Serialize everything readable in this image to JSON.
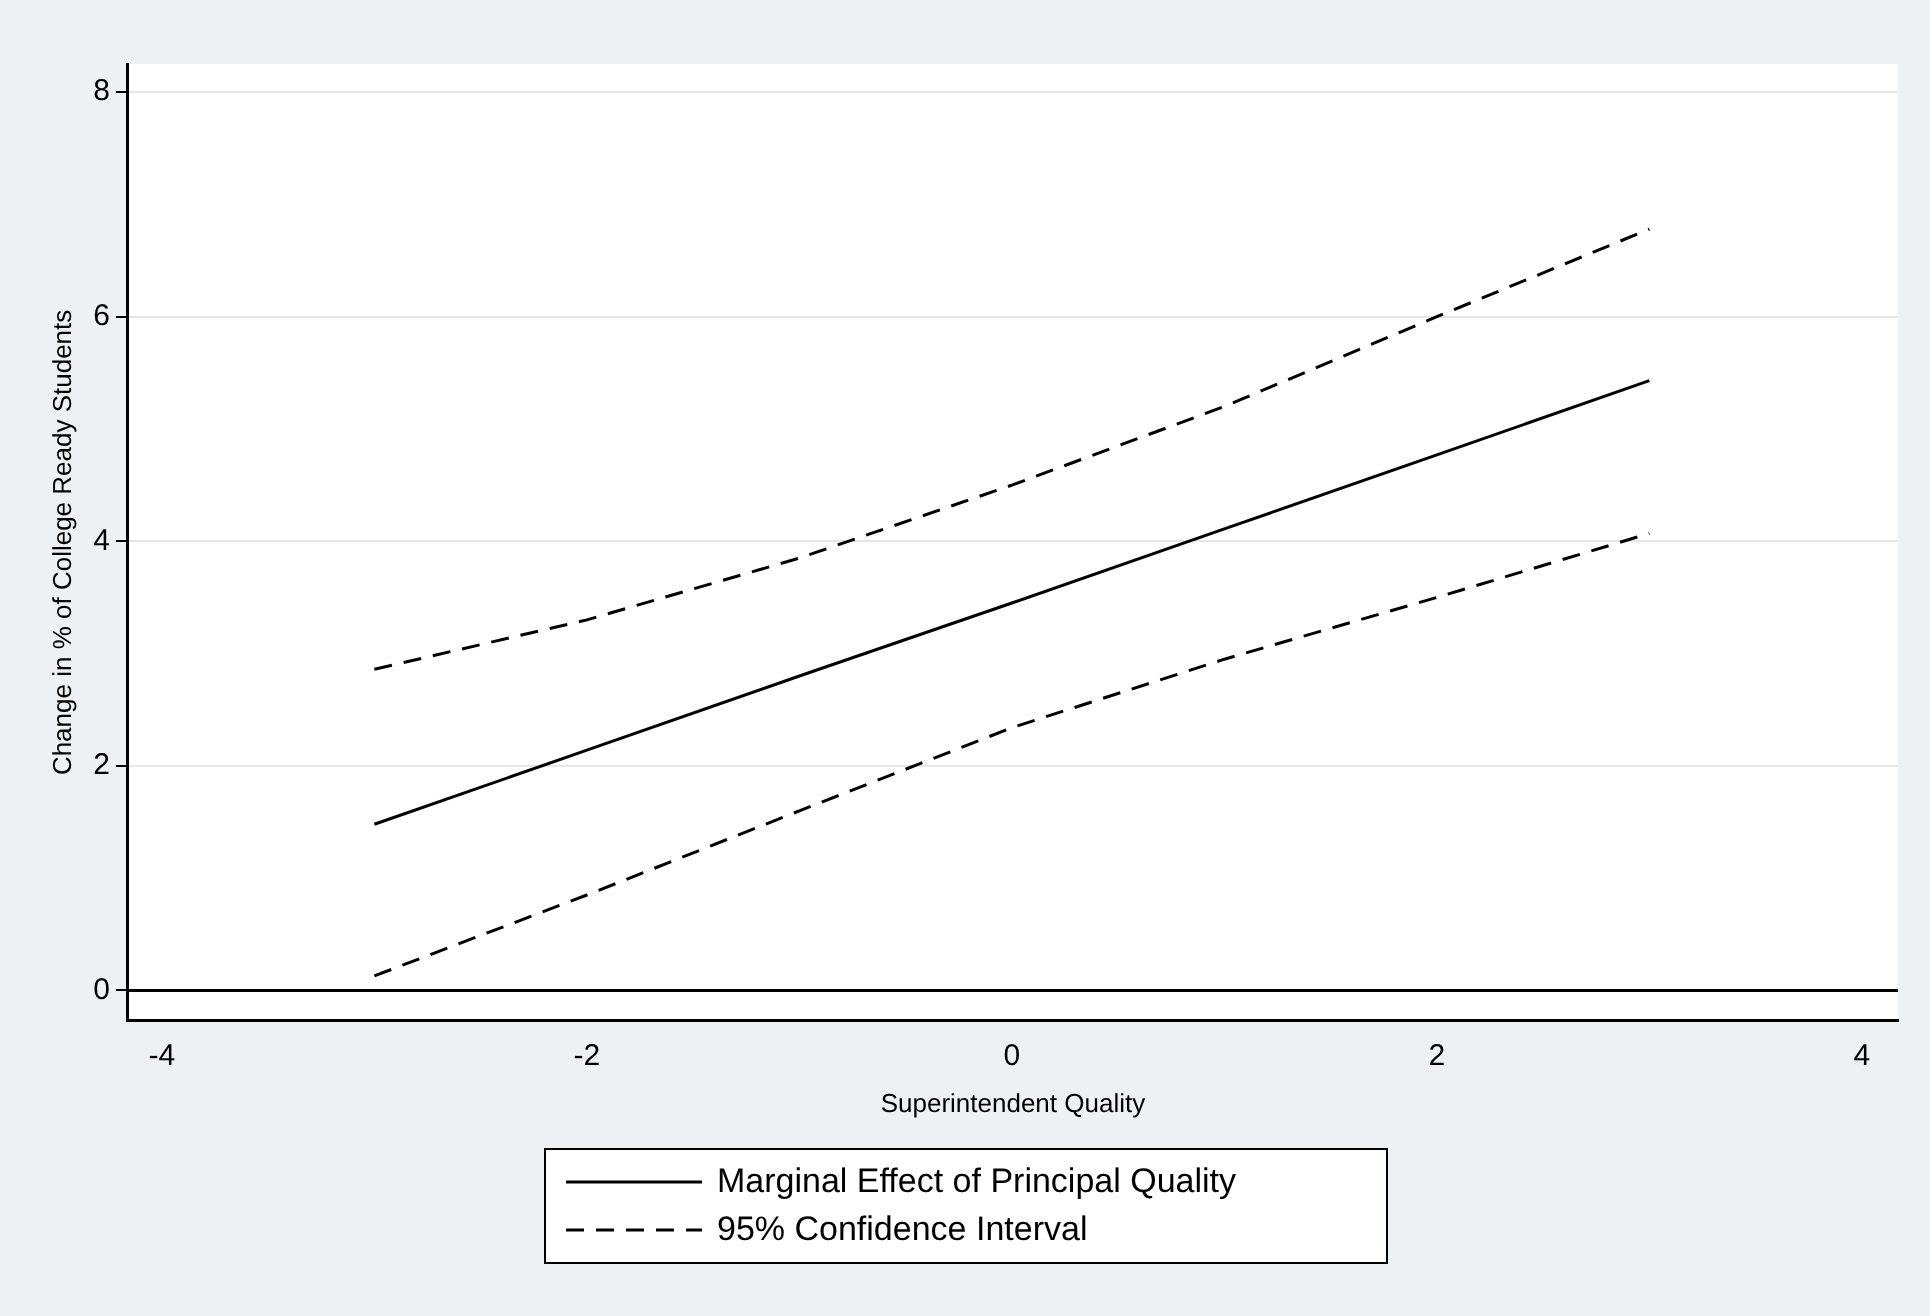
{
  "chart_data": {
    "type": "line",
    "xlabel": "Superintendent Quality",
    "ylabel": "Change in % of College Ready Students",
    "x": [
      -3,
      -2,
      -1,
      0,
      1,
      2,
      3
    ],
    "series": [
      {
        "name": "Marginal Effect of Principal Quality",
        "color": "#000000",
        "line_style": "solid",
        "values": [
          1.48,
          2.14,
          2.8,
          3.45,
          4.11,
          4.77,
          5.43
        ]
      },
      {
        "name": "95% Confidence Interval",
        "color": "#000000",
        "line_style": "dashed",
        "values": [
          2.86,
          3.3,
          3.85,
          4.5,
          5.2,
          6.0,
          6.78
        ]
      },
      {
        "color": "#000000",
        "line_style": "dashed",
        "values": [
          0.13,
          0.85,
          1.6,
          2.34,
          2.95,
          3.5,
          4.07
        ]
      }
    ],
    "xlim": [
      -4.16,
      4.17
    ],
    "xticks": [
      -4,
      -2,
      0,
      2,
      4
    ],
    "ylim": [
      -0.27,
      8.25
    ],
    "yticks": [
      0,
      2,
      4,
      6,
      8
    ],
    "grid": "y",
    "legend": "bottom",
    "marker": "none",
    "ref_lines": [
      {
        "axis": "y",
        "value": 0,
        "color": "#000000"
      }
    ]
  }
}
